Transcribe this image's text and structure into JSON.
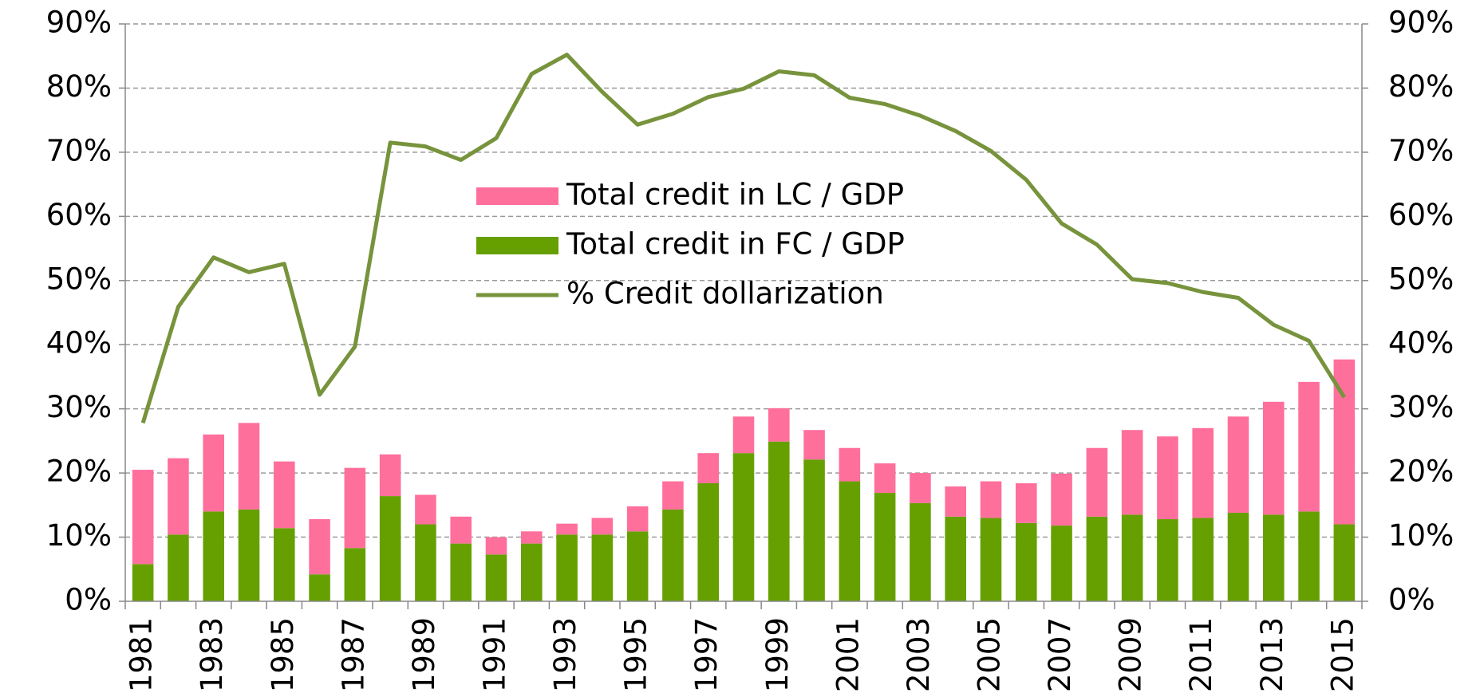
{
  "chart_data": {
    "type": "bar",
    "categories": [
      "1981",
      null,
      "1983",
      null,
      "1985",
      null,
      "1987",
      null,
      "1989",
      null,
      "1991",
      null,
      "1993",
      null,
      "1995",
      null,
      "1997",
      null,
      "1999",
      null,
      "2001",
      null,
      "2003",
      null,
      "2005",
      null,
      "2007",
      null,
      "2009",
      null,
      "2011",
      null,
      "2013",
      null,
      "2015"
    ],
    "series": [
      {
        "name": "Total credit in LC / GDP",
        "type": "bar",
        "color": "#ff6f9c",
        "values": [
          14.7,
          11.9,
          12,
          13.5,
          10.4,
          8.6,
          12.5,
          6.5,
          4.6,
          4.2,
          2.7,
          1.9,
          1.7,
          2.6,
          3.9,
          4.4,
          4.7,
          5.7,
          5.2,
          4.6,
          5.2,
          4.6,
          4.7,
          4.7,
          5.7,
          6.2,
          8.1,
          10.7,
          13.2,
          12.9,
          14,
          15,
          17.6,
          20.2,
          25.7
        ]
      },
      {
        "name": "Total credit in FC / GDP",
        "type": "bar",
        "color": "#66a000",
        "values": [
          5.8,
          10.4,
          14,
          14.3,
          11.4,
          4.2,
          8.3,
          16.4,
          12,
          9,
          7.3,
          9,
          10.4,
          10.4,
          10.9,
          14.3,
          18.4,
          23.1,
          24.9,
          22.1,
          18.7,
          16.9,
          15.3,
          13.2,
          13,
          12.2,
          11.8,
          13.2,
          13.5,
          12.8,
          13,
          13.8,
          13.5,
          14,
          12
        ]
      },
      {
        "name": "% Credit dollarization",
        "type": "line",
        "axis": "y2",
        "color": "#77933c",
        "values": [
          27.8,
          45.9,
          53.6,
          51.3,
          52.6,
          32.2,
          39.7,
          71.5,
          70.9,
          68.8,
          72.2,
          82.2,
          85.2,
          79.4,
          74.3,
          76,
          78.6,
          79.9,
          82.6,
          82,
          78.5,
          77.5,
          75.7,
          73.3,
          70.2,
          65.7,
          58.9,
          55.6,
          50.2,
          49.6,
          48.2,
          47.3,
          43.1,
          40.6,
          31.8
        ]
      }
    ],
    "ylim": [
      0,
      90
    ],
    "yticks": [
      {
        "value": 0,
        "label": "0%"
      },
      {
        "value": 10,
        "label": "10%"
      },
      {
        "value": 20,
        "label": "20%"
      },
      {
        "value": 30,
        "label": "30%"
      },
      {
        "value": 40,
        "label": "40%"
      },
      {
        "value": 50,
        "label": "50%"
      },
      {
        "value": 60,
        "label": "60%"
      },
      {
        "value": 70,
        "label": "70%"
      },
      {
        "value": 80,
        "label": "80%"
      },
      {
        "value": 90,
        "label": "90%"
      }
    ],
    "y2lim": [
      0,
      90
    ],
    "y2ticks": [
      {
        "value": 0,
        "label": "0%"
      },
      {
        "value": 10,
        "label": "10%"
      },
      {
        "value": 20,
        "label": "20%"
      },
      {
        "value": 30,
        "label": "30%"
      },
      {
        "value": 40,
        "label": "40%"
      },
      {
        "value": 50,
        "label": "50%"
      },
      {
        "value": 60,
        "label": "60%"
      },
      {
        "value": 70,
        "label": "70%"
      },
      {
        "value": 80,
        "label": "80%"
      },
      {
        "value": 90,
        "label": "90%"
      }
    ],
    "grid": true,
    "stacked": true
  }
}
